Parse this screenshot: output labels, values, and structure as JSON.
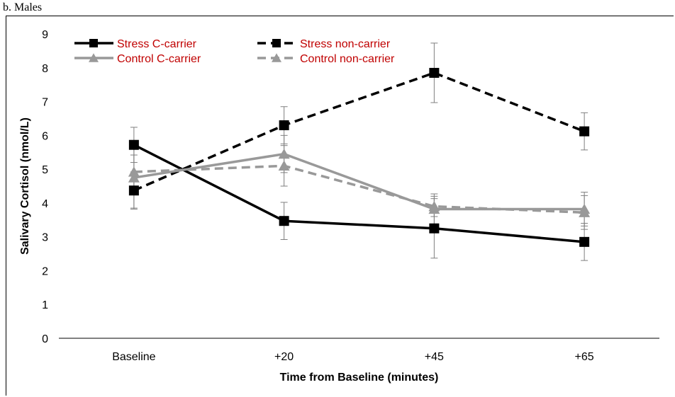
{
  "panel_label": "b. Males",
  "chart_data": {
    "type": "line",
    "title": "",
    "xlabel": "Time from Baseline (minutes)",
    "ylabel": "Salivary Cortisol (nmol/L)",
    "categories": [
      "Baseline",
      "+20",
      "+45",
      "+65"
    ],
    "ylim": [
      0,
      9
    ],
    "yticks": [
      0,
      1,
      2,
      3,
      4,
      5,
      6,
      7,
      8,
      9
    ],
    "grid": false,
    "legend_position": "top-left",
    "legend_color": "#c00000",
    "series": [
      {
        "name": "Stress C-carrier",
        "color": "#000000",
        "dash": "solid",
        "marker": "square",
        "values": [
          5.72,
          3.47,
          3.25,
          2.85
        ],
        "errors": [
          0.52,
          0.55,
          0.88,
          0.55
        ]
      },
      {
        "name": "Stress non-carrier",
        "color": "#000000",
        "dash": "dashed",
        "marker": "square",
        "values": [
          4.37,
          6.3,
          7.85,
          6.12
        ],
        "errors": [
          0.55,
          0.55,
          0.88,
          0.55
        ]
      },
      {
        "name": "Control C-carrier",
        "color": "#999999",
        "dash": "solid",
        "marker": "triangle",
        "values": [
          4.75,
          5.45,
          3.82,
          3.82
        ],
        "errors": [
          0.9,
          0.55,
          0.45,
          0.5
        ]
      },
      {
        "name": "Control non-carrier",
        "color": "#999999",
        "dash": "dashed",
        "marker": "triangle",
        "values": [
          4.92,
          5.1,
          3.9,
          3.72
        ],
        "errors": [
          0.5,
          0.6,
          0.3,
          0.5
        ]
      }
    ]
  }
}
